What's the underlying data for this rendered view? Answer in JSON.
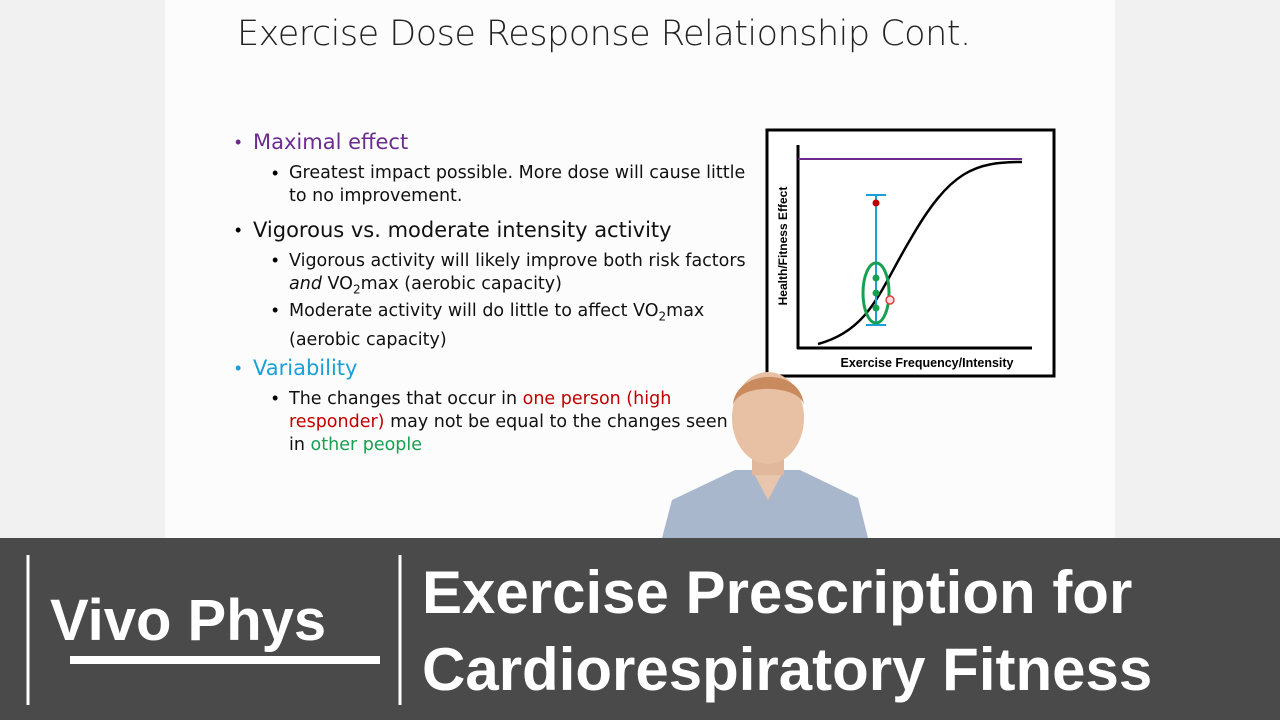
{
  "slide": {
    "title": "Exercise Dose Response Relationship Cont.",
    "bullets": [
      {
        "heading": "Maximal effect",
        "subs": [
          [
            "Greatest impact possible. More dose will cause little to no improvement."
          ]
        ]
      },
      {
        "heading": "Vigorous vs. moderate intensity activity",
        "subs": [
          [
            "Vigorous activity will likely improve both risk factors ",
            "and",
            " VO",
            "2",
            "max (aerobic capacity)"
          ],
          [
            "Moderate activity will do little to affect VO",
            "2",
            "max (aerobic capacity)"
          ]
        ]
      },
      {
        "heading": "Variability",
        "subs": [
          [
            "The changes that occur in ",
            "one person (high responder)",
            " may not be equal to the changes seen in ",
            "other people"
          ]
        ]
      }
    ],
    "diagram": {
      "y_label": "Health/Fitness Effect",
      "x_label": "Exercise Frequency/Intensity"
    }
  },
  "banner": {
    "logo": "Vivo Phys",
    "title_lines": [
      "Exercise Prescription for",
      "Cardiorespiratory Fitness"
    ]
  }
}
